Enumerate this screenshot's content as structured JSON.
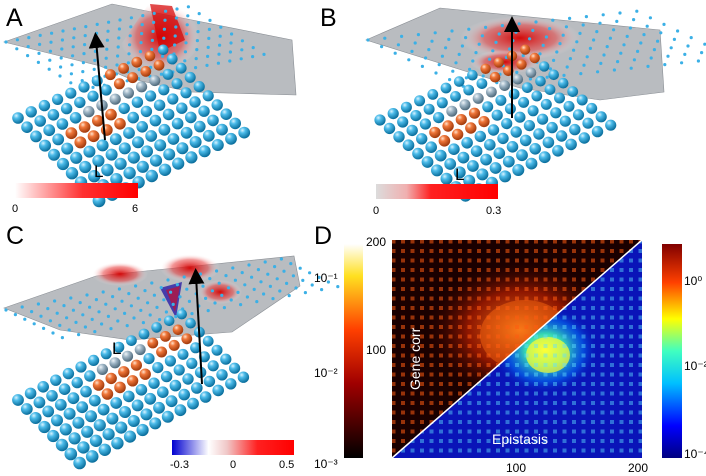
{
  "panels": {
    "A": {
      "label": "A",
      "lattice_label": "L",
      "colorbar": {
        "min": "0",
        "max": "6",
        "from": "#ffffff",
        "to": "#ff0000"
      }
    },
    "B": {
      "label": "B",
      "lattice_label": "L",
      "colorbar": {
        "min": "0",
        "max": "0.3",
        "from": "#dddddd",
        "to": "#ff0000"
      }
    },
    "C": {
      "label": "C",
      "lattice_label": "L",
      "colorbar": {
        "min": "-0.3",
        "mid": "0",
        "max": "0.5",
        "from": "#0000cc",
        "to": "#ff0000"
      }
    },
    "D": {
      "label": "D",
      "left_colorbar": {
        "top": "10⁻¹",
        "mid": "10⁻²",
        "bottom": "10⁻³"
      },
      "right_colorbar": {
        "top": "10⁰",
        "mid": "10⁻²",
        "bottom": "10⁻⁴"
      },
      "y_ticks": [
        "200",
        "100"
      ],
      "x_ticks": [
        "100",
        "200"
      ],
      "upper_label": "Gene corr",
      "lower_label": "Epistasis"
    }
  },
  "colors": {
    "sphere_blue": "#2fa8da",
    "sphere_orange": "#e8642a",
    "surface_gray": "#b9bcc0",
    "node_cyan": "#3bb0e6"
  }
}
